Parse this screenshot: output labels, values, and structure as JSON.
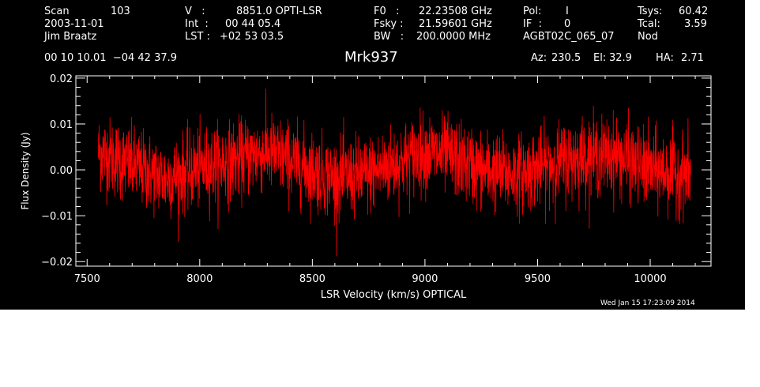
{
  "header": {
    "scan_label": "Scan",
    "scan_value": "103",
    "date": "2003-11-01",
    "observer": "Jim Braatz",
    "v_label": "V   :",
    "v_value": "8851.0 OPTI-LSR",
    "int_label": "Int  :",
    "int_value": "00 44 05.4",
    "lst_label": "LST :",
    "lst_value": "+02 53 03.5",
    "f0_label": "F0   :",
    "f0_value": "22.23508 GHz",
    "fsky_label": "Fsky :",
    "fsky_value": "21.59601 GHz",
    "bw_label": "BW   :",
    "bw_value": "200.0000 MHz",
    "pol_label": "Pol:",
    "pol_value": "I",
    "if_label": "IF  :",
    "if_value": "0",
    "project": "AGBT02C_065_07",
    "tsys_label": "Tsys:",
    "tsys_value": "60.42",
    "tcal_label": "Tcal:",
    "tcal_value": "3.59",
    "mode": "Nod",
    "coords": "00 10 10.01  −04 42 37.9",
    "source": "Mrk937",
    "az_label": "Az:",
    "az_value": "230.5",
    "el_label": "El:",
    "el_value": "32.9",
    "ha_label": "HA:",
    "ha_value": "2.71"
  },
  "timestamp": "Wed Jan 15 17:23:09 2014",
  "chart_data": {
    "type": "line",
    "xlabel": "LSR Velocity (km/s) OPTICAL",
    "ylabel": "Flux Density (Jy)",
    "xlim": [
      7450,
      10270
    ],
    "ylim": [
      -0.021,
      0.0205
    ],
    "x_ticks": [
      7500,
      8000,
      8500,
      9000,
      9500,
      10000
    ],
    "x_tick_labels": [
      "7500",
      "8000",
      "8500",
      "9000",
      "9500",
      "10000"
    ],
    "y_ticks": [
      -0.02,
      -0.01,
      0.0,
      0.01,
      0.02
    ],
    "y_tick_labels": [
      "−0.02",
      "−0.01",
      "0.00",
      "0.01",
      "0.02"
    ],
    "background": "#000000",
    "axis_color": "#ffffff",
    "series": [
      {
        "color": "#ff0000",
        "x_start": 7550,
        "x_end": 10180,
        "baseline_x": [
          7550,
          7700,
          7850,
          8000,
          8150,
          8300,
          8450,
          8600,
          8750,
          8900,
          9000,
          9100,
          9250,
          9400,
          9550,
          9700,
          9850,
          10000,
          10180
        ],
        "baseline_y": [
          0.004,
          0.001,
          -0.002,
          0.0005,
          0.002,
          0.004,
          0.001,
          -0.002,
          -0.001,
          0.002,
          0.004,
          0.003,
          0.0,
          -0.001,
          0.001,
          0.003,
          0.003,
          0.0,
          -0.001
        ],
        "noise_rms": 0.0042
      }
    ]
  }
}
